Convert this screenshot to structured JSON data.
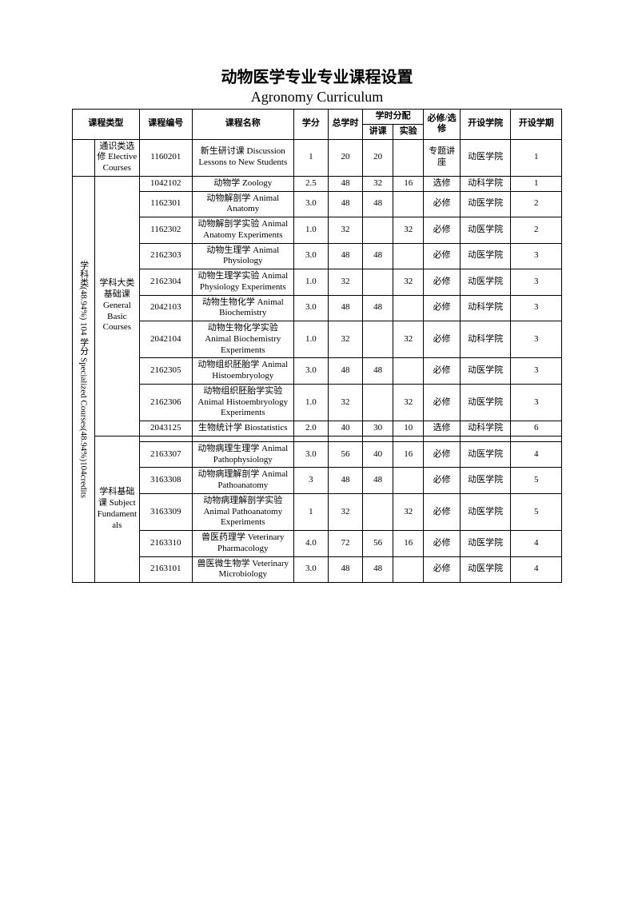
{
  "title_cn": "动物医学专业专业课程设置",
  "title_en": "Agronomy Curriculum",
  "headers": {
    "course_type": "课程类型",
    "code": "课程编号",
    "name": "课程名称",
    "credit": "学分",
    "total_hours": "总学时",
    "hours_dist": "学时分配",
    "lecture": "讲课",
    "lab": "实验",
    "req": "必修/选修",
    "school": "开设学院",
    "semester": "开设学期"
  },
  "cat_elective": "通识类选修 Elective Courses",
  "cat_specialized": "学科类(48.94%) 104 学分 Specialized Courses(48.94%)104credits",
  "cat_general_basic": "学科大类基础课 General Basic Courses",
  "cat_subj_fund": "学科基础课 Subject Fundamentals",
  "rows": [
    {
      "code": "1160201",
      "name": "新生研讨课 Discussion Lessons to New Students",
      "credit": "1",
      "total": "20",
      "lecture": "20",
      "lab": "",
      "req": "专题讲座",
      "school": "动医学院",
      "sem": "1"
    },
    {
      "code": "1042102",
      "name": "动物学 Zoology",
      "credit": "2.5",
      "total": "48",
      "lecture": "32",
      "lab": "16",
      "req": "选修",
      "school": "动科学院",
      "sem": "1"
    },
    {
      "code": "1162301",
      "name": "动物解剖学 Animal Anatomy",
      "credit": "3.0",
      "total": "48",
      "lecture": "48",
      "lab": "",
      "req": "必修",
      "school": "动医学院",
      "sem": "2"
    },
    {
      "code": "1162302",
      "name": "动物解剖学实验 Animal Anatomy Experiments",
      "credit": "1.0",
      "total": "32",
      "lecture": "",
      "lab": "32",
      "req": "必修",
      "school": "动医学院",
      "sem": "2"
    },
    {
      "code": "2162303",
      "name": "动物生理学 Animal Physiology",
      "credit": "3.0",
      "total": "48",
      "lecture": "48",
      "lab": "",
      "req": "必修",
      "school": "动医学院",
      "sem": "3"
    },
    {
      "code": "2162304",
      "name": "动物生理学实验 Animal Physiology Experiments",
      "credit": "1.0",
      "total": "32",
      "lecture": "",
      "lab": "32",
      "req": "必修",
      "school": "动医学院",
      "sem": "3"
    },
    {
      "code": "2042103",
      "name": "动物生物化学 Animal Biochemistry",
      "credit": "3.0",
      "total": "48",
      "lecture": "48",
      "lab": "",
      "req": "必修",
      "school": "动科学院",
      "sem": "3"
    },
    {
      "code": "2042104",
      "name": "动物生物化学实验 Animal Biochemistry Experiments",
      "credit": "1.0",
      "total": "32",
      "lecture": "",
      "lab": "32",
      "req": "必修",
      "school": "动科学院",
      "sem": "3"
    },
    {
      "code": "2162305",
      "name": "动物组织胚胎学 Animal Histoembryology",
      "credit": "3.0",
      "total": "48",
      "lecture": "48",
      "lab": "",
      "req": "必修",
      "school": "动医学院",
      "sem": "3"
    },
    {
      "code": "2162306",
      "name": "动物组织胚胎学实验 Animal Histoembryology Experiments",
      "credit": "1.0",
      "total": "32",
      "lecture": "",
      "lab": "32",
      "req": "必修",
      "school": "动医学院",
      "sem": "3"
    },
    {
      "code": "2043125",
      "name": "生物统计学 Biostatistics",
      "credit": "2.0",
      "total": "40",
      "lecture": "30",
      "lab": "10",
      "req": "选修",
      "school": "动科学院",
      "sem": "6"
    },
    {
      "code": "2163307",
      "name": "动物病理生理学 Animal Pathophysiology",
      "credit": "3.0",
      "total": "56",
      "lecture": "40",
      "lab": "16",
      "req": "必修",
      "school": "动医学院",
      "sem": "4"
    },
    {
      "code": "3163308",
      "name": "动物病理解剖学 Animal Pathoanatomy",
      "credit": "3",
      "total": "48",
      "lecture": "48",
      "lab": "",
      "req": "必修",
      "school": "动医学院",
      "sem": "5"
    },
    {
      "code": "3163309",
      "name": "动物病理解剖学实验 Animal Pathoanatomy Experiments",
      "credit": "1",
      "total": "32",
      "lecture": "",
      "lab": "32",
      "req": "必修",
      "school": "动医学院",
      "sem": "5"
    },
    {
      "code": "2163310",
      "name": "兽医药理学 Veterinary Pharmacology",
      "credit": "4.0",
      "total": "72",
      "lecture": "56",
      "lab": "16",
      "req": "必修",
      "school": "动医学院",
      "sem": "4"
    },
    {
      "code": "2163101",
      "name": "兽医微生物学 Veterinary Microbiology",
      "credit": "3.0",
      "total": "48",
      "lecture": "48",
      "lab": "",
      "req": "必修",
      "school": "动医学院",
      "sem": "4"
    }
  ]
}
